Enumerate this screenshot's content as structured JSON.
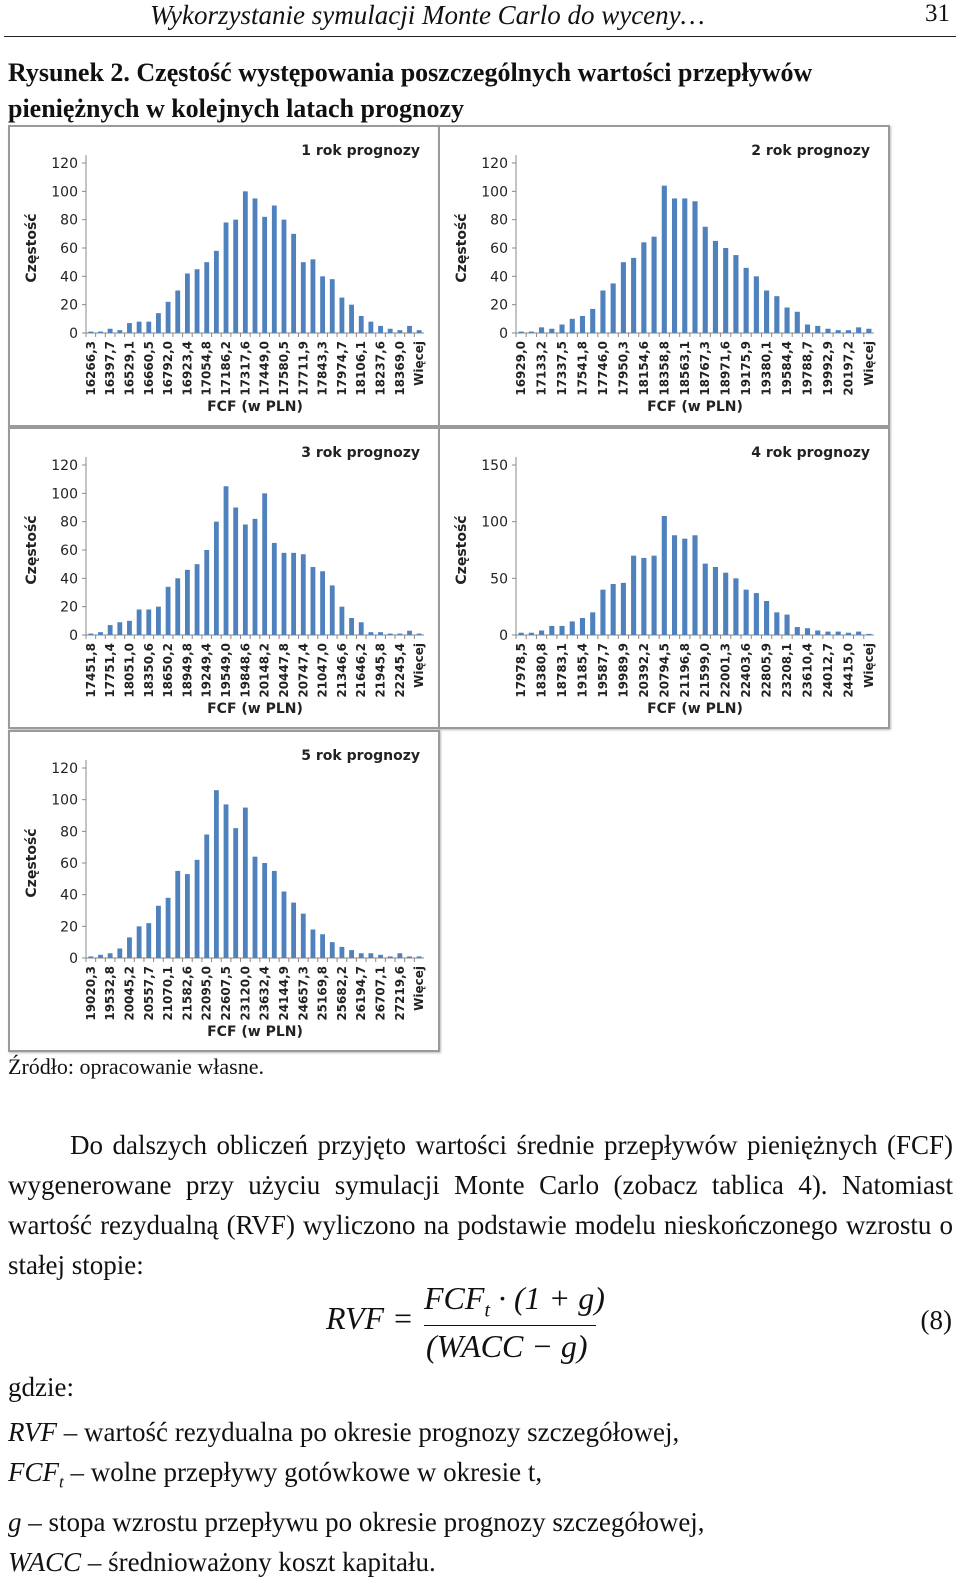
{
  "header": {
    "title": "Wykorzystanie symulacji Monte Carlo do wyceny…",
    "page": "31"
  },
  "caption": {
    "label": "Rysunek 2.",
    "text": "Częstość występowania poszczególnych wartości przepływów pieniężnych w kolejnych latach prognozy"
  },
  "chart_data": [
    {
      "type": "bar",
      "title": "1 rok prognozy",
      "x_label": "FCF (w PLN)",
      "y_label": "Częstość",
      "color": "#4f81bd",
      "categories": [
        "16266,3",
        null,
        "16397,7",
        null,
        "16529,1",
        null,
        "16660,5",
        null,
        "16792,0",
        null,
        "16923,4",
        null,
        "17054,8",
        null,
        "17186,2",
        null,
        "17317,6",
        null,
        "17449,0",
        null,
        "17580,5",
        null,
        "17711,9",
        null,
        "17843,3",
        null,
        "17974,7",
        null,
        "18106,1",
        null,
        "18237,6",
        null,
        "18369,0",
        null,
        "Więcej"
      ],
      "values": [
        1,
        1,
        3,
        2,
        7,
        8,
        8,
        14,
        22,
        30,
        42,
        45,
        50,
        58,
        78,
        80,
        100,
        95,
        82,
        90,
        80,
        70,
        50,
        52,
        40,
        38,
        25,
        20,
        12,
        8,
        5,
        3,
        2,
        5,
        2
      ],
      "ylim": [
        0,
        120
      ],
      "yticks": [
        0,
        20,
        40,
        60,
        80,
        100,
        120
      ]
    },
    {
      "type": "bar",
      "title": "2 rok prognozy",
      "x_label": "FCF (w PLN)",
      "y_label": "Częstość",
      "color": "#4f81bd",
      "categories": [
        "16929,0",
        null,
        "17133,2",
        null,
        "17337,5",
        null,
        "17541,8",
        null,
        "17746,0",
        null,
        "17950,3",
        null,
        "18154,6",
        null,
        "18358,8",
        null,
        "18563,1",
        null,
        "18767,3",
        null,
        "18971,6",
        null,
        "19175,9",
        null,
        "19380,1",
        null,
        "19584,4",
        null,
        "19788,7",
        null,
        "19992,9",
        null,
        "20197,2",
        null,
        "Więcej"
      ],
      "values": [
        1,
        1,
        4,
        3,
        6,
        10,
        12,
        17,
        30,
        35,
        50,
        53,
        64,
        68,
        104,
        95,
        95,
        93,
        75,
        65,
        60,
        55,
        46,
        40,
        30,
        26,
        18,
        15,
        6,
        5,
        3,
        2,
        2,
        4,
        3
      ],
      "ylim": [
        0,
        120
      ],
      "yticks": [
        0,
        20,
        40,
        60,
        80,
        100,
        120
      ]
    },
    {
      "type": "bar",
      "title": "3 rok prognozy",
      "x_label": "FCF (w PLN)",
      "y_label": "Częstość",
      "color": "#4f81bd",
      "categories": [
        "17451,8",
        null,
        "17751,4",
        null,
        "18051,0",
        null,
        "18350,6",
        null,
        "18650,2",
        null,
        "18949,8",
        null,
        "19249,4",
        null,
        "19549,0",
        null,
        "19848,6",
        null,
        "20148,2",
        null,
        "20447,8",
        null,
        "20747,4",
        null,
        "21047,0",
        null,
        "21346,6",
        null,
        "21646,2",
        null,
        "21945,8",
        null,
        "22245,4",
        null,
        "Więcej"
      ],
      "values": [
        1,
        2,
        7,
        9,
        10,
        18,
        18,
        20,
        34,
        40,
        46,
        50,
        60,
        80,
        105,
        90,
        78,
        82,
        100,
        65,
        58,
        58,
        57,
        48,
        45,
        35,
        20,
        12,
        9,
        2,
        2,
        1,
        1,
        3,
        1
      ],
      "ylim": [
        0,
        120
      ],
      "yticks": [
        0,
        20,
        40,
        60,
        80,
        100,
        120
      ]
    },
    {
      "type": "bar",
      "title": "4 rok prognozy",
      "x_label": "FCF (w PLN)",
      "y_label": "Częstość",
      "color": "#4f81bd",
      "categories": [
        "17978,5",
        null,
        "18380,8",
        null,
        "18783,1",
        null,
        "19185,4",
        null,
        "19587,7",
        null,
        "19989,9",
        null,
        "20392,2",
        null,
        "20794,5",
        null,
        "21196,8",
        null,
        "21599,0",
        null,
        "22001,3",
        null,
        "22403,6",
        null,
        "22805,9",
        null,
        "23208,1",
        null,
        "23610,4",
        null,
        "24012,7",
        null,
        "24415,0",
        null,
        "Więcej"
      ],
      "values": [
        2,
        2,
        4,
        8,
        8,
        12,
        15,
        20,
        40,
        45,
        46,
        70,
        68,
        70,
        105,
        88,
        85,
        88,
        63,
        60,
        55,
        50,
        40,
        37,
        30,
        20,
        18,
        7,
        6,
        4,
        3,
        3,
        2,
        3,
        1
      ],
      "ylim": [
        0,
        150
      ],
      "yticks": [
        0,
        50,
        100,
        150
      ]
    },
    {
      "type": "bar",
      "title": "5 rok prognozy",
      "x_label": "FCF (w PLN)",
      "y_label": "Częstość",
      "color": "#4f81bd",
      "categories": [
        "19020,3",
        null,
        "19532,8",
        null,
        "20045,2",
        null,
        "20557,7",
        null,
        "21070,1",
        null,
        "21582,6",
        null,
        "22095,0",
        null,
        "22607,5",
        null,
        "23120,0",
        null,
        "23632,4",
        null,
        "24144,9",
        null,
        "24657,3",
        null,
        "25169,8",
        null,
        "25682,2",
        null,
        "26194,7",
        null,
        "26707,1",
        null,
        "27219,6",
        null,
        "Więcej"
      ],
      "values": [
        1,
        2,
        3,
        6,
        13,
        20,
        22,
        33,
        38,
        55,
        53,
        62,
        78,
        106,
        97,
        82,
        95,
        64,
        60,
        55,
        42,
        35,
        28,
        18,
        15,
        10,
        7,
        5,
        3,
        3,
        2,
        1,
        3,
        1,
        1
      ],
      "ylim": [
        0,
        120
      ],
      "yticks": [
        0,
        20,
        40,
        60,
        80,
        100,
        120
      ]
    }
  ],
  "source": "Źródło: opracowanie własne.",
  "paragraph": "Do dalszych obliczeń przyjęto wartości średnie przepływów pieniężnych (FCF) wygenerowane przy użyciu symulacji Monte Carlo (zobacz tablica 4). Natomiast wartość rezydualną (RVF) wyliczono na podstawie modelu nieskończonego wzrostu o stałej stopie:",
  "equation": {
    "lhs": "RVF",
    "eq": "=",
    "num_main": "FCF",
    "num_sub": "t",
    "num_rest": "· (1 + g)",
    "den": "(WACC − g)",
    "number": "(8)"
  },
  "where": "gdzie:",
  "definitions": [
    {
      "term": "RVF",
      "sub": null,
      "text": "– wartość rezydualna po okresie prognozy szczegółowej,"
    },
    {
      "term": "FCF",
      "sub": "t",
      "text": "– wolne przepływy gotówkowe w okresie t,"
    },
    {
      "term": "g",
      "sub": null,
      "text": "– stopa wzrostu przepływu po okresie prognozy szczegółowej,"
    },
    {
      "term": "WACC",
      "sub": null,
      "text": "– średnioważony koszt kapitału."
    }
  ]
}
